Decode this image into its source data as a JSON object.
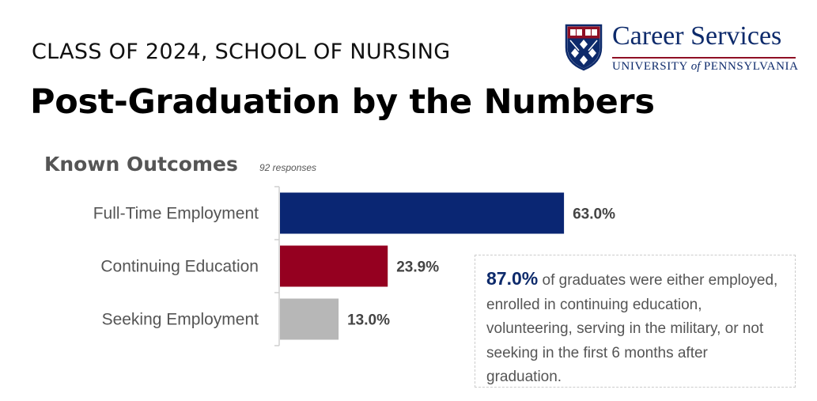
{
  "header": {
    "subtitle": "CLASS OF 2024, SCHOOL OF NURSING",
    "title": "Post-Graduation by the Numbers"
  },
  "logo": {
    "name": "Career Services",
    "university_pre": "UNIVERSITY",
    "university_of": "of",
    "university_post": "PENNSYLVANIA",
    "colors": {
      "navy": "#0d2a6b",
      "red": "#8f0f24"
    }
  },
  "section": {
    "title": "Known Outcomes",
    "responses": "92 responses"
  },
  "chart_data": {
    "type": "bar",
    "orientation": "horizontal",
    "categories": [
      "Full-Time Employment",
      "Continuing Education",
      "Seeking Employment"
    ],
    "values": [
      63.0,
      23.9,
      13.0
    ],
    "value_labels": [
      "63.0%",
      "23.9%",
      "13.0%"
    ],
    "colors": [
      "#0a2673",
      "#950020",
      "#b7b7b7"
    ],
    "xlim": [
      0,
      100
    ],
    "grid": false
  },
  "callout": {
    "highlight": "87.0%",
    "text": " of graduates were either employed, enrolled in continuing education, volunteering, serving in the military, or not seeking in the first 6 months after graduation."
  }
}
